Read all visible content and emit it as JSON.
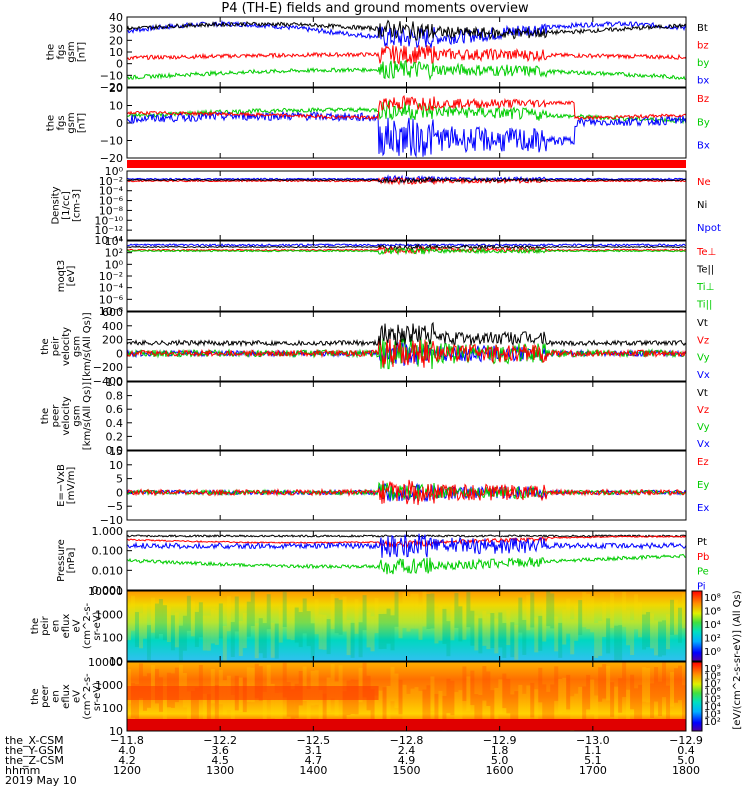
{
  "title": "P4 (TH-E) fields and ground moments overview",
  "chart_data": [
    {
      "type": "line",
      "ylabel": [
        "the",
        "fgs",
        "gsm",
        "[nT]"
      ],
      "ylim": [
        -20,
        40
      ],
      "yticks": [
        "40",
        "30",
        "20",
        "10",
        "0",
        "−10",
        "−20"
      ],
      "legend": [
        {
          "name": "Bt",
          "color": "#000000"
        },
        {
          "name": "bz",
          "color": "#ff0000"
        },
        {
          "name": "by",
          "color": "#00cc00"
        },
        {
          "name": "bx",
          "color": "#0000ff"
        }
      ]
    },
    {
      "type": "line",
      "ylabel": [
        "the",
        "fgs",
        "gsm",
        "[nT]"
      ],
      "ylim": [
        -25,
        20
      ],
      "yticks": [
        "20",
        "10",
        "0",
        "−10",
        "−20"
      ],
      "legend": [
        {
          "name": "Bz",
          "color": "#ff0000"
        },
        {
          "name": "By",
          "color": "#00cc00"
        },
        {
          "name": "Bx",
          "color": "#0000ff"
        }
      ]
    },
    {
      "type": "line",
      "ylabel": [
        "Density",
        "[1/cc]",
        "[cm-3]"
      ],
      "yticks": [
        "10⁰",
        "10⁻²",
        "10⁻⁴",
        "10⁻⁶",
        "10⁻⁸",
        "10⁻¹⁰",
        "10⁻¹²",
        "10⁻¹⁴"
      ],
      "legend": [
        {
          "name": "Ne",
          "color": "#ff0000"
        },
        {
          "name": "Ni",
          "color": "#000000"
        },
        {
          "name": "Npot",
          "color": "#0000ff"
        }
      ]
    },
    {
      "type": "line",
      "ylabel": [
        "moqt3",
        "[eV]"
      ],
      "yticks": [
        "10⁴",
        "10²",
        "10⁰",
        "10⁻²",
        "10⁻⁴",
        "10⁻⁶",
        "10⁻⁸"
      ],
      "legend": [
        {
          "name": "Te⊥",
          "color": "#ff0000"
        },
        {
          "name": "Te||",
          "color": "#000000"
        },
        {
          "name": "Ti⊥",
          "color": "#00cc00"
        },
        {
          "name": "Ti||",
          "color": "#00cc00"
        }
      ]
    },
    {
      "type": "line",
      "ylabel": [
        "the",
        "peir",
        "velocity",
        "gsm",
        "[km/s(All Qs)]"
      ],
      "ylim": [
        -400,
        600
      ],
      "yticks": [
        "600",
        "400",
        "200",
        "0",
        "−200",
        "−400"
      ],
      "legend": [
        {
          "name": "Vt",
          "color": "#000000"
        },
        {
          "name": "Vz",
          "color": "#ff0000"
        },
        {
          "name": "Vy",
          "color": "#00cc00"
        },
        {
          "name": "Vx",
          "color": "#0000ff"
        }
      ]
    },
    {
      "type": "line",
      "ylabel": [
        "the",
        "peer",
        "velocity",
        "gsm",
        "[km/s(All Qs)]"
      ],
      "ylim": [
        0,
        1
      ],
      "yticks": [
        "1.0",
        "0.8",
        "0.6",
        "0.4",
        "0.2",
        "0.0"
      ],
      "legend": [
        {
          "name": "Vt",
          "color": "#000000"
        },
        {
          "name": "Vz",
          "color": "#ff0000"
        },
        {
          "name": "Vy",
          "color": "#00cc00"
        },
        {
          "name": "Vx",
          "color": "#0000ff"
        }
      ]
    },
    {
      "type": "line",
      "ylabel": [
        "E=−VxB",
        "[mV/m]"
      ],
      "ylim": [
        -10,
        15
      ],
      "yticks": [
        "15",
        "10",
        "5",
        "0",
        "−5",
        "−10"
      ],
      "legend": [
        {
          "name": "Ez",
          "color": "#ff0000"
        },
        {
          "name": "Ey",
          "color": "#00cc00"
        },
        {
          "name": "Ex",
          "color": "#0000ff"
        }
      ]
    },
    {
      "type": "line",
      "ylabel": [
        "Pressure",
        "[nPa]"
      ],
      "yscale": "log",
      "yticks": [
        "1.000",
        "0.100",
        "0.010",
        "0.001"
      ],
      "legend": [
        {
          "name": "Pt",
          "color": "#000000"
        },
        {
          "name": "Pb",
          "color": "#ff0000"
        },
        {
          "name": "Pe",
          "color": "#00cc00"
        },
        {
          "name": "Pi",
          "color": "#0000ff"
        }
      ]
    },
    {
      "type": "heatmap",
      "ylabel": [
        "the",
        "peir",
        "en",
        "eflux",
        "eV",
        "(cm^2-s-",
        "sr-eV)"
      ],
      "yticks": [
        "10000",
        "1000",
        "100",
        "10"
      ]
    },
    {
      "type": "heatmap",
      "ylabel": [
        "the",
        "peer",
        "en",
        "eflux",
        "eV",
        "(cm^2-s-",
        "sr-eV)"
      ],
      "yticks": [
        "10000",
        "1000",
        "100",
        "10"
      ]
    }
  ],
  "colorbars": [
    {
      "ticks": [
        "10⁸",
        "10⁶",
        "10⁴",
        "10²",
        "10⁰"
      ]
    },
    {
      "ticks": [
        "10⁹",
        "10⁸",
        "10⁷",
        "10⁶",
        "10⁵",
        "10⁴",
        "10³",
        "10²"
      ]
    }
  ],
  "colorbar_label": "[eV/(cm^2-s-sr-eV)] (All Qs)",
  "xaxis": {
    "rows": [
      {
        "label": "the_X-CSM",
        "values": [
          "−11.8",
          "−12.2",
          "−12.5",
          "−12.8",
          "−12.9",
          "−13.0",
          "−12.9"
        ]
      },
      {
        "label": "the_Y-GSM",
        "values": [
          "4.0",
          "3.6",
          "3.1",
          "2.4",
          "1.8",
          "1.1",
          "0.4"
        ]
      },
      {
        "label": "the_Z-CSM",
        "values": [
          "4.2",
          "4.5",
          "4.7",
          "4.9",
          "5.0",
          "5.1",
          "5.0"
        ]
      },
      {
        "label": "hhmm",
        "values": [
          "1200",
          "1300",
          "1400",
          "1500",
          "1600",
          "1700",
          "1800"
        ]
      }
    ],
    "date": "2019 May 10"
  }
}
